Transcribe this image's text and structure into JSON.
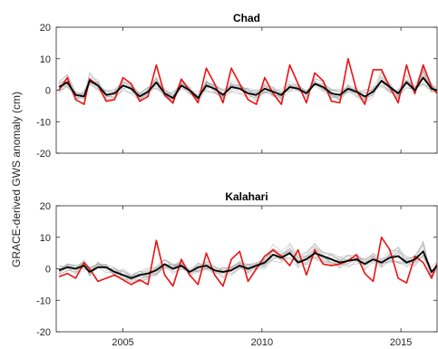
{
  "figure": {
    "ylabel": "GRACE-derived GWS anomaly (cm)"
  },
  "chart_data": [
    {
      "type": "line",
      "title": "Chad",
      "xlabel": "",
      "ylabel": "GRACE-derived GWS anomaly (cm)",
      "xlim": [
        2002.6,
        2016.3
      ],
      "ylim": [
        -20,
        20
      ],
      "yticks": [
        -20,
        -10,
        0,
        10,
        20
      ],
      "xticks": [
        2005,
        2010,
        2015
      ],
      "xtick_labels": [
        "",
        "",
        ""
      ],
      "grid": false,
      "legend": "none",
      "colors": {
        "ensemble": "#aaaaaa",
        "mean": "#000000",
        "highlight": "#ee1111"
      },
      "series": [
        {
          "role": "ensemble_mean",
          "x": [
            2002.7,
            2003.0,
            2003.3,
            2003.6,
            2003.8,
            2004.1,
            2004.4,
            2004.7,
            2005.0,
            2005.3,
            2005.6,
            2005.9,
            2006.2,
            2006.5,
            2006.8,
            2007.1,
            2007.4,
            2007.7,
            2008.0,
            2008.3,
            2008.6,
            2008.9,
            2009.2,
            2009.5,
            2009.8,
            2010.1,
            2010.4,
            2010.7,
            2011.0,
            2011.3,
            2011.6,
            2011.9,
            2012.2,
            2012.5,
            2012.8,
            2013.1,
            2013.4,
            2013.7,
            2014.0,
            2014.3,
            2014.6,
            2014.9,
            2015.2,
            2015.5,
            2015.8,
            2016.1,
            2016.3
          ],
          "values": [
            1.0,
            2.5,
            -1.5,
            -2.0,
            3.0,
            1.5,
            -1.5,
            -1.0,
            1.5,
            0.5,
            -2.0,
            -0.5,
            2.5,
            -1.0,
            -2.5,
            1.5,
            0.0,
            -2.5,
            1.5,
            0.5,
            -1.5,
            1.0,
            0.5,
            -1.0,
            -1.5,
            0.5,
            -0.5,
            -1.5,
            1.0,
            0.5,
            -1.0,
            2.0,
            1.0,
            -1.0,
            -1.5,
            0.5,
            -0.5,
            -2.0,
            -0.5,
            3.0,
            1.0,
            -1.0,
            2.5,
            0.0,
            4.0,
            0.5,
            0.0
          ]
        },
        {
          "role": "highlight",
          "x": [
            2002.7,
            2003.0,
            2003.3,
            2003.6,
            2003.8,
            2004.1,
            2004.4,
            2004.7,
            2005.0,
            2005.3,
            2005.6,
            2005.9,
            2006.2,
            2006.5,
            2006.8,
            2007.1,
            2007.4,
            2007.7,
            2008.0,
            2008.3,
            2008.6,
            2008.9,
            2009.2,
            2009.5,
            2009.8,
            2010.1,
            2010.4,
            2010.7,
            2011.0,
            2011.3,
            2011.6,
            2011.9,
            2012.2,
            2012.5,
            2012.8,
            2013.1,
            2013.4,
            2013.7,
            2014.0,
            2014.3,
            2014.6,
            2014.9,
            2015.2,
            2015.5,
            2015.8,
            2016.1,
            2016.3
          ],
          "values": [
            0.0,
            4.0,
            -3.0,
            -4.5,
            3.5,
            1.5,
            -3.5,
            -3.0,
            4.0,
            2.0,
            -3.5,
            -2.0,
            8.0,
            -1.5,
            -4.0,
            3.5,
            0.0,
            -4.0,
            7.0,
            2.0,
            -4.0,
            7.0,
            2.0,
            -3.0,
            -4.5,
            4.0,
            -1.0,
            -4.5,
            8.0,
            2.0,
            -4.0,
            5.5,
            3.0,
            -3.5,
            -4.0,
            10.0,
            0.0,
            -4.5,
            6.5,
            6.5,
            1.0,
            -4.0,
            8.0,
            -1.0,
            8.0,
            1.0,
            -1.0
          ]
        }
      ]
    },
    {
      "type": "line",
      "title": "Kalahari",
      "xlabel": "",
      "ylabel": "GRACE-derived GWS anomaly (cm)",
      "xlim": [
        2002.6,
        2016.3
      ],
      "ylim": [
        -20,
        20
      ],
      "yticks": [
        -20,
        -10,
        0,
        10,
        20
      ],
      "xticks": [
        2005,
        2010,
        2015
      ],
      "xtick_labels": [
        "2005",
        "2010",
        "2015"
      ],
      "grid": false,
      "legend": "none",
      "colors": {
        "ensemble": "#aaaaaa",
        "mean": "#000000",
        "highlight": "#ee1111"
      },
      "series": [
        {
          "role": "ensemble_mean",
          "x": [
            2002.7,
            2003.0,
            2003.3,
            2003.6,
            2003.8,
            2004.1,
            2004.4,
            2004.7,
            2005.0,
            2005.3,
            2005.6,
            2005.9,
            2006.2,
            2006.5,
            2006.8,
            2007.1,
            2007.4,
            2007.7,
            2008.0,
            2008.3,
            2008.6,
            2008.9,
            2009.2,
            2009.5,
            2009.8,
            2010.1,
            2010.4,
            2010.7,
            2011.0,
            2011.3,
            2011.6,
            2011.9,
            2012.2,
            2012.5,
            2012.8,
            2013.1,
            2013.4,
            2013.7,
            2014.0,
            2014.3,
            2014.6,
            2014.9,
            2015.2,
            2015.5,
            2015.8,
            2016.1,
            2016.3
          ],
          "values": [
            -0.5,
            0.5,
            0.0,
            1.0,
            -1.0,
            0.5,
            0.5,
            -1.0,
            -2.0,
            -3.0,
            -2.0,
            -1.5,
            -0.5,
            1.5,
            0.0,
            1.0,
            -1.0,
            0.5,
            1.0,
            -0.5,
            -1.0,
            -0.5,
            1.0,
            0.0,
            1.0,
            2.0,
            4.5,
            3.5,
            5.0,
            2.0,
            3.0,
            5.0,
            4.0,
            3.0,
            2.0,
            2.5,
            3.0,
            1.5,
            3.0,
            2.0,
            3.5,
            4.0,
            2.0,
            3.0,
            5.5,
            -1.0,
            1.0
          ]
        },
        {
          "role": "highlight",
          "x": [
            2002.7,
            2003.0,
            2003.3,
            2003.6,
            2003.8,
            2004.1,
            2004.4,
            2004.7,
            2005.0,
            2005.3,
            2005.6,
            2005.9,
            2006.2,
            2006.5,
            2006.8,
            2007.1,
            2007.4,
            2007.7,
            2008.0,
            2008.3,
            2008.6,
            2008.9,
            2009.2,
            2009.5,
            2009.8,
            2010.1,
            2010.4,
            2010.7,
            2011.0,
            2011.3,
            2011.6,
            2011.9,
            2012.2,
            2012.5,
            2012.8,
            2013.1,
            2013.4,
            2013.7,
            2014.0,
            2014.3,
            2014.6,
            2014.9,
            2015.2,
            2015.5,
            2015.8,
            2016.1,
            2016.3
          ],
          "values": [
            -2.5,
            -1.5,
            -3.0,
            2.0,
            0.0,
            -4.0,
            -3.0,
            -2.0,
            -3.5,
            -5.0,
            -3.5,
            -5.0,
            9.0,
            -2.0,
            -5.5,
            3.0,
            -2.0,
            -5.0,
            5.0,
            -2.0,
            -5.5,
            3.0,
            5.5,
            -4.0,
            0.0,
            4.0,
            6.0,
            4.0,
            1.0,
            6.0,
            -2.0,
            6.0,
            1.5,
            1.0,
            1.5,
            2.5,
            4.5,
            -1.5,
            -4.0,
            10.0,
            6.0,
            -3.0,
            -4.5,
            4.0,
            2.0,
            -3.0,
            1.5
          ]
        }
      ]
    }
  ]
}
